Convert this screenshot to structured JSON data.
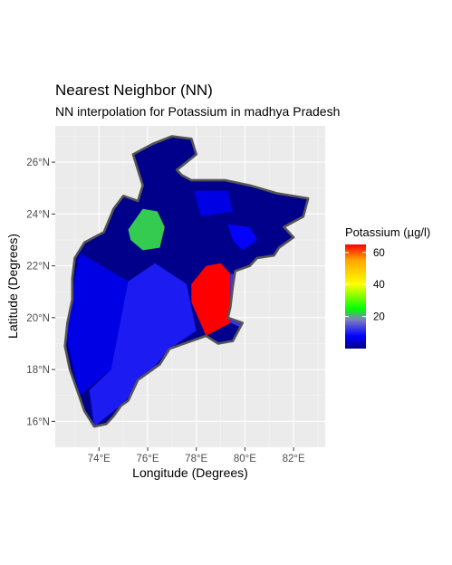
{
  "chart_data": {
    "type": "heatmap",
    "title": "Nearest Neighbor (NN)",
    "subtitle": "NN interpolation for Potassium in madhya Pradesh",
    "xlabel": "Longitude (Degrees)",
    "ylabel": "Latitude (Degrees)",
    "xlim": [
      72.2,
      83.3
    ],
    "ylim": [
      15.0,
      27.4
    ],
    "x_ticks": [
      74,
      76,
      78,
      80,
      82
    ],
    "y_ticks": [
      16,
      18,
      20,
      22,
      24,
      26
    ],
    "x_tick_labels": [
      "74°E",
      "76°E",
      "78°E",
      "80°E",
      "82°E"
    ],
    "y_tick_labels": [
      "16°N",
      "18°N",
      "20°N",
      "22°N",
      "24°N",
      "26°N"
    ],
    "grid": true,
    "legend": {
      "title": "Potassium (µg/l)",
      "position": "right",
      "range": [
        0,
        65
      ],
      "ticks": [
        20,
        40,
        60
      ],
      "tick_labels": [
        "20",
        "40",
        "60"
      ],
      "colors": [
        "#00008B",
        "#0000FF",
        "#8080C0",
        "#00FF00",
        "#FFFF00",
        "#FFA500",
        "#FF0000"
      ],
      "color_stops": [
        0,
        0.12,
        0.28,
        0.38,
        0.62,
        0.85,
        1.0
      ]
    },
    "outline": [
      [
        75.4,
        26.3
      ],
      [
        76.2,
        26.7
      ],
      [
        77.0,
        27.0
      ],
      [
        77.8,
        26.9
      ],
      [
        78.0,
        26.3
      ],
      [
        77.2,
        25.7
      ],
      [
        77.4,
        25.5
      ],
      [
        77.8,
        25.3
      ],
      [
        79.2,
        25.3
      ],
      [
        80.2,
        25.1
      ],
      [
        81.3,
        24.8
      ],
      [
        82.6,
        24.6
      ],
      [
        82.4,
        23.9
      ],
      [
        81.6,
        23.5
      ],
      [
        82.0,
        23.1
      ],
      [
        81.4,
        22.7
      ],
      [
        81.2,
        22.4
      ],
      [
        80.5,
        22.3
      ],
      [
        80.2,
        22.0
      ],
      [
        79.6,
        21.8
      ],
      [
        79.5,
        21.2
      ],
      [
        79.4,
        20.4
      ],
      [
        79.3,
        20.0
      ],
      [
        79.9,
        19.8
      ],
      [
        79.5,
        19.1
      ],
      [
        78.9,
        19.0
      ],
      [
        78.4,
        19.3
      ],
      [
        77.8,
        19.1
      ],
      [
        76.9,
        18.8
      ],
      [
        76.5,
        18.2
      ],
      [
        75.6,
        17.6
      ],
      [
        75.2,
        16.8
      ],
      [
        74.9,
        16.6
      ],
      [
        74.6,
        16.2
      ],
      [
        74.3,
        15.9
      ],
      [
        73.8,
        15.8
      ],
      [
        73.4,
        16.4
      ],
      [
        73.1,
        17.2
      ],
      [
        72.8,
        18.0
      ],
      [
        72.6,
        18.9
      ],
      [
        72.7,
        19.8
      ],
      [
        72.9,
        20.7
      ],
      [
        72.9,
        21.5
      ],
      [
        73.0,
        22.3
      ],
      [
        73.4,
        22.9
      ],
      [
        74.2,
        23.3
      ],
      [
        74.6,
        24.2
      ],
      [
        75.0,
        24.7
      ],
      [
        75.6,
        24.5
      ],
      [
        75.8,
        25.1
      ]
    ],
    "regions": [
      {
        "value": 6,
        "polygon": [
          [
            73.2,
            22.5
          ],
          [
            75.2,
            21.4
          ],
          [
            74.5,
            18.0
          ],
          [
            73.2,
            17.0
          ],
          [
            72.6,
            19.5
          ]
        ]
      },
      {
        "value": 10,
        "polygon": [
          [
            75.2,
            21.4
          ],
          [
            76.3,
            22.1
          ],
          [
            77.6,
            21.3
          ],
          [
            78.0,
            19.5
          ],
          [
            76.9,
            18.8
          ],
          [
            75.0,
            16.7
          ],
          [
            73.8,
            15.8
          ],
          [
            73.6,
            17.2
          ],
          [
            74.5,
            18.0
          ]
        ]
      },
      {
        "value": 22,
        "polygon": [
          [
            75.2,
            23.4
          ],
          [
            75.8,
            24.2
          ],
          [
            76.4,
            24.1
          ],
          [
            76.7,
            23.5
          ],
          [
            76.5,
            22.7
          ],
          [
            75.8,
            22.6
          ],
          [
            75.3,
            23.0
          ]
        ]
      },
      {
        "value": 65,
        "polygon": [
          [
            77.8,
            21.3
          ],
          [
            78.4,
            22.0
          ],
          [
            79.0,
            22.1
          ],
          [
            79.4,
            21.7
          ],
          [
            79.4,
            19.8
          ],
          [
            78.4,
            19.3
          ],
          [
            77.8,
            20.6
          ]
        ]
      },
      {
        "value": 12,
        "polygon": [
          [
            79.4,
            21.7
          ],
          [
            79.9,
            21.6
          ],
          [
            80.1,
            20.3
          ],
          [
            79.9,
            19.6
          ],
          [
            79.4,
            19.8
          ]
        ]
      },
      {
        "value": 8,
        "polygon": [
          [
            79.3,
            23.6
          ],
          [
            80.2,
            23.5
          ],
          [
            80.5,
            23.0
          ],
          [
            79.9,
            22.6
          ],
          [
            79.5,
            23.0
          ]
        ]
      },
      {
        "value": 6,
        "polygon": [
          [
            77.9,
            24.9
          ],
          [
            79.3,
            24.9
          ],
          [
            79.5,
            24.1
          ],
          [
            78.2,
            23.9
          ]
        ]
      }
    ]
  }
}
